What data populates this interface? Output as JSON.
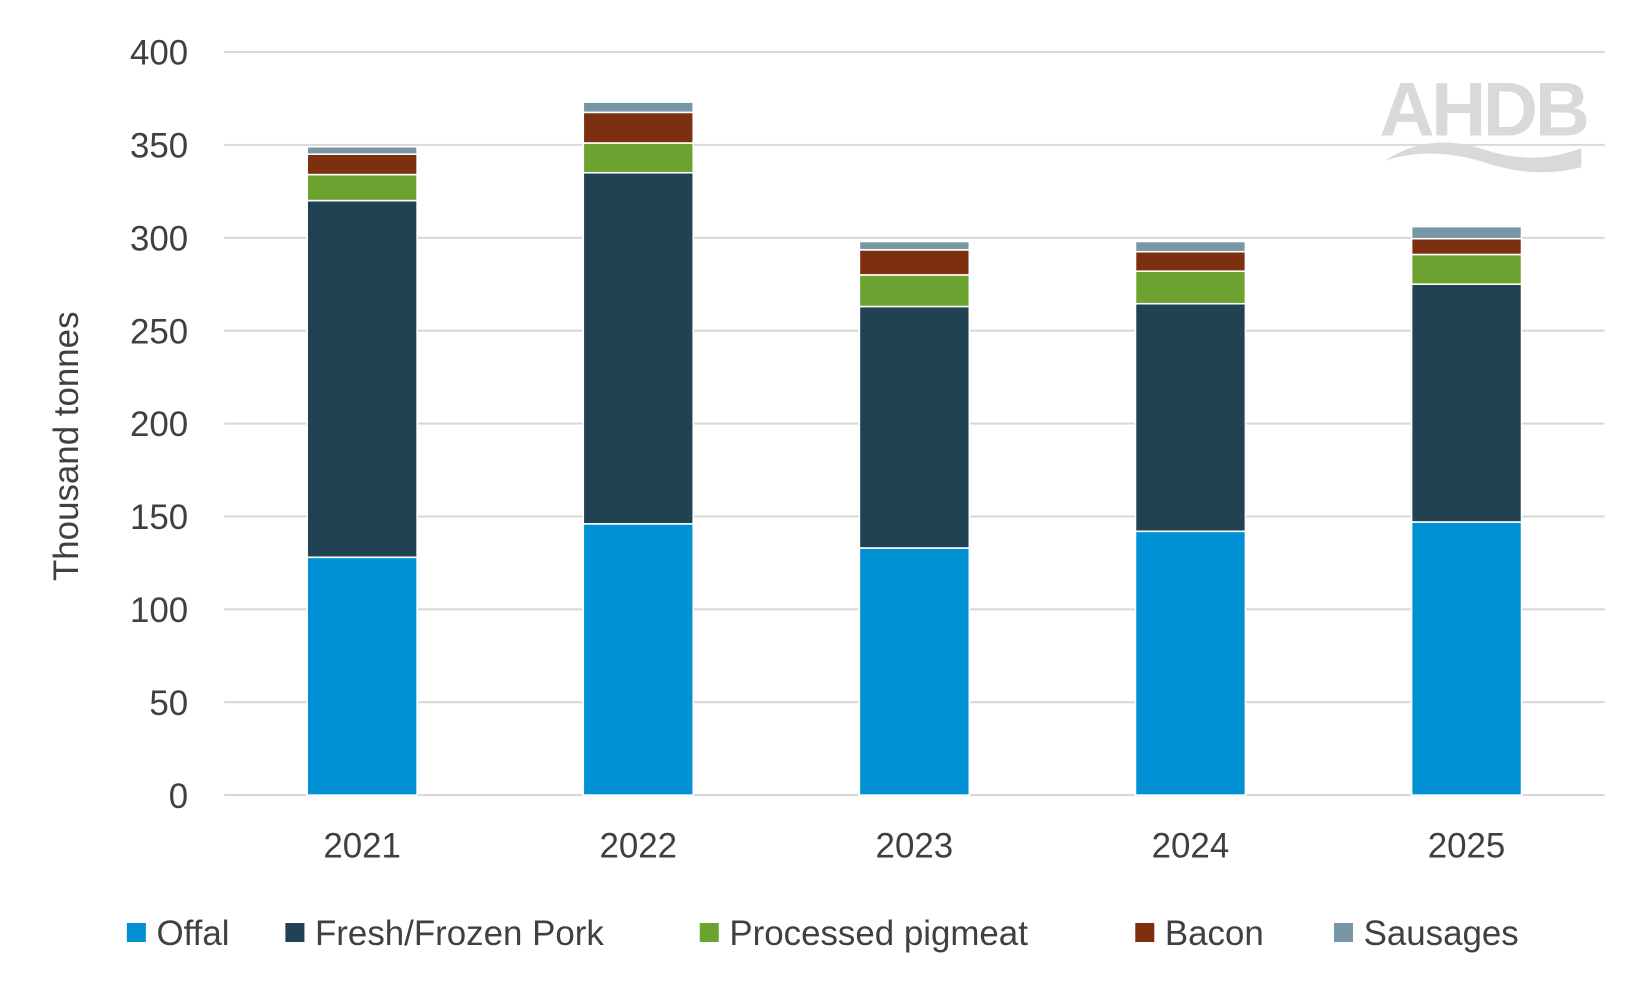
{
  "chart_data": {
    "type": "bar",
    "stacked": true,
    "title": "",
    "xlabel": "",
    "ylabel": "Thousand tonnes",
    "ylim": [
      0,
      400
    ],
    "yticks": [
      0,
      50,
      100,
      150,
      200,
      250,
      300,
      350,
      400
    ],
    "grid": true,
    "legend_position": "bottom",
    "categories": [
      "2021",
      "2022",
      "2023",
      "2024",
      "2025"
    ],
    "series": [
      {
        "name": "Offal",
        "color": "#0090D4",
        "values": [
          128,
          146,
          133,
          142,
          147
        ]
      },
      {
        "name": "Fresh/Frozen Pork",
        "color": "#204252",
        "values": [
          192,
          189,
          130,
          122.5,
          128
        ]
      },
      {
        "name": "Processed pigmeat",
        "color": "#6CA22F",
        "values": [
          14,
          16,
          17,
          17.5,
          16
        ]
      },
      {
        "name": "Bacon",
        "color": "#7D3010",
        "values": [
          11,
          16.5,
          13.5,
          10.5,
          8.5
        ]
      },
      {
        "name": "Sausages",
        "color": "#7897A6",
        "values": [
          4,
          5.5,
          4.5,
          5.5,
          6.5
        ]
      }
    ]
  },
  "logo": {
    "text": "AHDB"
  }
}
